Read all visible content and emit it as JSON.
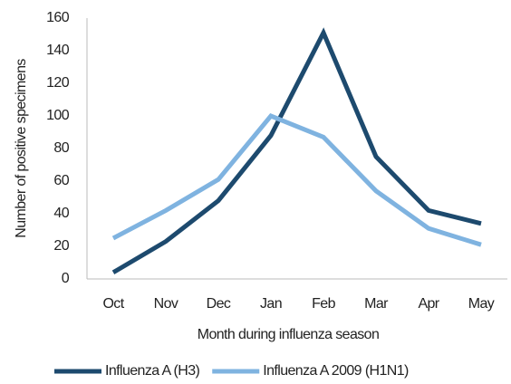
{
  "chart_data": {
    "type": "line",
    "xlabel": "Month during influenza season",
    "ylabel": "Number of positive specimens",
    "categories": [
      "Oct",
      "Nov",
      "Dec",
      "Jan",
      "Feb",
      "Mar",
      "Apr",
      "May"
    ],
    "series": [
      {
        "name": "Influenza A (H3)",
        "color": "#1d4a6e",
        "values": [
          4,
          23,
          48,
          88,
          151,
          75,
          42,
          34
        ]
      },
      {
        "name": "Influenza A 2009 (H1N1)",
        "color": "#7fb3e0",
        "values": [
          25,
          42,
          61,
          100,
          87,
          54,
          31,
          21
        ]
      }
    ],
    "ylim": [
      0,
      160
    ],
    "yticks": [
      0,
      20,
      40,
      60,
      80,
      100,
      120,
      140,
      160
    ],
    "grid": false,
    "legend": "bottom"
  }
}
